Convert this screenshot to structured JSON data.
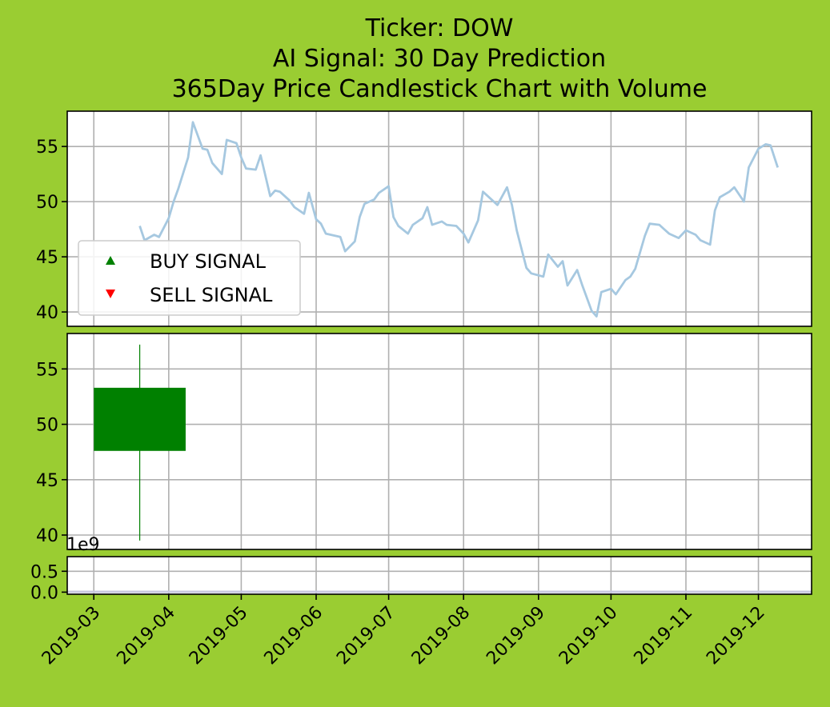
{
  "figure": {
    "background": "#9acd32",
    "title_lines": [
      "Ticker: DOW",
      "AI Signal: 30 Day Prediction",
      "365Day Price Candlestick Chart with Volume"
    ]
  },
  "legend": {
    "buy_label": "BUY SIGNAL",
    "sell_label": "SELL SIGNAL",
    "buy_color": "#008000",
    "sell_color": "#ff0000"
  },
  "volume_panel": {
    "offset_label": "1e9"
  },
  "chart_data": [
    {
      "type": "line",
      "panel": "price",
      "color": "#a6c8e0",
      "x_ticks": [
        "2019-03",
        "2019-04",
        "2019-05",
        "2019-06",
        "2019-07",
        "2019-08",
        "2019-09",
        "2019-10",
        "2019-11",
        "2019-12"
      ],
      "y_ticks": [
        40,
        45,
        50,
        55
      ],
      "ylim": [
        38.7,
        58.2
      ],
      "xlim": [
        "2019-02-18",
        "2019-12-23"
      ],
      "grid": true,
      "legend_position": "lower-left",
      "series": [
        {
          "x": [
            "2019-03-20",
            "2019-03-22",
            "2019-03-26",
            "2019-03-28",
            "2019-04-01",
            "2019-04-03",
            "2019-04-05",
            "2019-04-09",
            "2019-04-11",
            "2019-04-15",
            "2019-04-17",
            "2019-04-19",
            "2019-04-23",
            "2019-04-25",
            "2019-04-29",
            "2019-05-01",
            "2019-05-03",
            "2019-05-07",
            "2019-05-09",
            "2019-05-13",
            "2019-05-15",
            "2019-05-17",
            "2019-05-21",
            "2019-05-23",
            "2019-05-27",
            "2019-05-29",
            "2019-06-01",
            "2019-06-03",
            "2019-06-05",
            "2019-06-07",
            "2019-06-11",
            "2019-06-13",
            "2019-06-17",
            "2019-06-19",
            "2019-06-21",
            "2019-06-25",
            "2019-06-27",
            "2019-07-01",
            "2019-07-03",
            "2019-07-05",
            "2019-07-09",
            "2019-07-11",
            "2019-07-15",
            "2019-07-17",
            "2019-07-19",
            "2019-07-23",
            "2019-07-25",
            "2019-07-29",
            "2019-08-01",
            "2019-08-03",
            "2019-08-07",
            "2019-08-09",
            "2019-08-13",
            "2019-08-15",
            "2019-08-19",
            "2019-08-21",
            "2019-08-23",
            "2019-08-27",
            "2019-08-29",
            "2019-09-03",
            "2019-09-05",
            "2019-09-09",
            "2019-09-11",
            "2019-09-13",
            "2019-09-17",
            "2019-09-19",
            "2019-09-23",
            "2019-09-25",
            "2019-09-27",
            "2019-10-01",
            "2019-10-03",
            "2019-10-07",
            "2019-10-09",
            "2019-10-11",
            "2019-10-15",
            "2019-10-17",
            "2019-10-21",
            "2019-10-23",
            "2019-10-25",
            "2019-10-29",
            "2019-11-01",
            "2019-11-05",
            "2019-11-07",
            "2019-11-11",
            "2019-11-13",
            "2019-11-15",
            "2019-11-19",
            "2019-11-21",
            "2019-11-25",
            "2019-11-27",
            "2019-12-01",
            "2019-12-04",
            "2019-12-06",
            "2019-12-09"
          ],
          "values": [
            47.8,
            46.5,
            47.0,
            46.8,
            48.5,
            50.0,
            51.2,
            54.0,
            57.2,
            54.8,
            54.7,
            53.5,
            52.5,
            55.6,
            55.3,
            54.0,
            53.0,
            52.9,
            54.2,
            50.5,
            51.0,
            50.9,
            50.1,
            49.5,
            48.9,
            50.8,
            48.4,
            48.0,
            47.1,
            47.0,
            46.8,
            45.5,
            46.4,
            48.6,
            49.8,
            50.2,
            50.8,
            51.4,
            48.6,
            47.8,
            47.1,
            47.9,
            48.5,
            49.5,
            47.9,
            48.2,
            47.9,
            47.8,
            47.1,
            46.3,
            48.3,
            50.9,
            50.1,
            49.7,
            51.3,
            49.7,
            47.4,
            44.0,
            43.5,
            43.2,
            45.2,
            44.1,
            44.6,
            42.4,
            43.8,
            42.5,
            40.1,
            39.6,
            41.8,
            42.1,
            41.6,
            42.9,
            43.2,
            43.9,
            46.9,
            48.0,
            47.9,
            47.5,
            47.1,
            46.7,
            47.4,
            47.0,
            46.5,
            46.1,
            49.2,
            50.4,
            50.9,
            51.3,
            50.0,
            53.1,
            54.8,
            55.2,
            55.1,
            53.1
          ]
        }
      ]
    },
    {
      "type": "candlestick",
      "panel": "candle",
      "color": "#008000",
      "y_ticks": [
        40,
        45,
        50,
        55
      ],
      "ylim": [
        38.7,
        58.2
      ],
      "grid": true,
      "candles": [
        {
          "x_start": "2019-03-01",
          "x_end": "2019-04-08",
          "open": 47.6,
          "close": 53.3,
          "high": 57.2,
          "low": 39.5
        }
      ]
    },
    {
      "type": "bar",
      "panel": "volume",
      "y_ticks": [
        0.0,
        0.5
      ],
      "ylim": [
        -0.05,
        0.85
      ],
      "y_scale": "1e9",
      "grid": true,
      "values": []
    }
  ]
}
